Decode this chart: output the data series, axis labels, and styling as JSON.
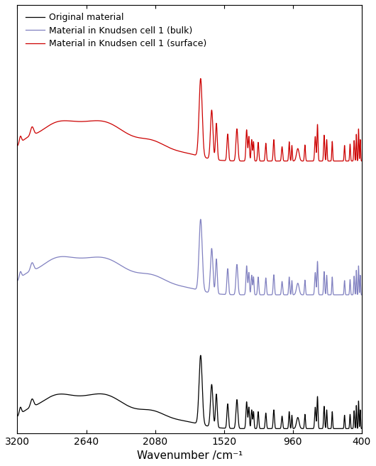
{
  "xlabel": "Wavenumber /cm⁻¹",
  "xlim": [
    3200,
    400
  ],
  "xticks": [
    3200,
    2640,
    2080,
    1520,
    960,
    400
  ],
  "legend_labels": [
    "Original material",
    "Material in Knudsen cell 1 (bulk)",
    "Material in Knudsen cell 1 (surface)"
  ],
  "colors": [
    "#000000",
    "#8080c0",
    "#cc0000"
  ],
  "offsets": [
    0.0,
    0.3,
    0.6
  ],
  "line_width": 0.9,
  "background_color": "white",
  "ylim": [
    -0.01,
    0.95
  ]
}
